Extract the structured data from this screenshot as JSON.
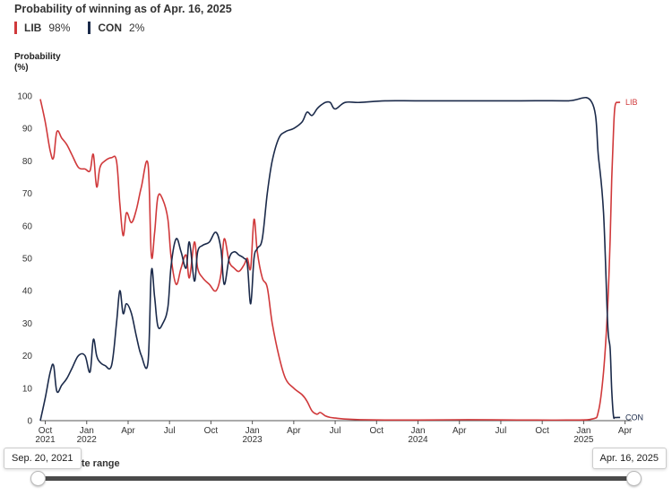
{
  "chart_data": {
    "type": "line",
    "title": "Probability of winning as of Apr. 16, 2025",
    "ylabel_line1": "Probability",
    "ylabel_line2": "(%)",
    "ylim": [
      0,
      100
    ],
    "yticks": [
      0,
      10,
      20,
      30,
      40,
      50,
      60,
      70,
      80,
      90,
      100
    ],
    "xrange": [
      2021.72,
      2025.29
    ],
    "xticks": [
      {
        "x": 2021.75,
        "line1": "Oct",
        "line2": "2021"
      },
      {
        "x": 2022.0,
        "line1": "Jan",
        "line2": "2022"
      },
      {
        "x": 2022.25,
        "line1": "Apr",
        "line2": ""
      },
      {
        "x": 2022.5,
        "line1": "Jul",
        "line2": ""
      },
      {
        "x": 2022.75,
        "line1": "Oct",
        "line2": ""
      },
      {
        "x": 2023.0,
        "line1": "Jan",
        "line2": "2023"
      },
      {
        "x": 2023.25,
        "line1": "Apr",
        "line2": ""
      },
      {
        "x": 2023.5,
        "line1": "Jul",
        "line2": ""
      },
      {
        "x": 2023.75,
        "line1": "Oct",
        "line2": ""
      },
      {
        "x": 2024.0,
        "line1": "Jan",
        "line2": "2024"
      },
      {
        "x": 2024.25,
        "line1": "Apr",
        "line2": ""
      },
      {
        "x": 2024.5,
        "line1": "Jul",
        "line2": ""
      },
      {
        "x": 2024.75,
        "line1": "Oct",
        "line2": ""
      },
      {
        "x": 2025.0,
        "line1": "Jan",
        "line2": "2025"
      },
      {
        "x": 2025.25,
        "line1": "Apr",
        "line2": ""
      }
    ],
    "series": [
      {
        "name": "LIB",
        "current": "98%",
        "end_label": "LIB",
        "color": "#d0393b",
        "points": [
          [
            2021.72,
            99
          ],
          [
            2021.75,
            92
          ],
          [
            2021.78,
            83
          ],
          [
            2021.8,
            81
          ],
          [
            2021.82,
            89
          ],
          [
            2021.85,
            87
          ],
          [
            2021.88,
            85
          ],
          [
            2021.91,
            82
          ],
          [
            2021.95,
            78
          ],
          [
            2021.99,
            77.5
          ],
          [
            2022.02,
            77
          ],
          [
            2022.04,
            82
          ],
          [
            2022.06,
            72
          ],
          [
            2022.08,
            78
          ],
          [
            2022.11,
            80
          ],
          [
            2022.15,
            81
          ],
          [
            2022.18,
            80
          ],
          [
            2022.2,
            67
          ],
          [
            2022.22,
            57
          ],
          [
            2022.24,
            64
          ],
          [
            2022.27,
            61
          ],
          [
            2022.3,
            65
          ],
          [
            2022.33,
            72
          ],
          [
            2022.37,
            79
          ],
          [
            2022.39,
            51
          ],
          [
            2022.41,
            58
          ],
          [
            2022.43,
            69
          ],
          [
            2022.46,
            68
          ],
          [
            2022.49,
            62
          ],
          [
            2022.51,
            50
          ],
          [
            2022.54,
            42
          ],
          [
            2022.57,
            47
          ],
          [
            2022.6,
            51
          ],
          [
            2022.62,
            44
          ],
          [
            2022.65,
            55
          ],
          [
            2022.67,
            47
          ],
          [
            2022.7,
            44
          ],
          [
            2022.74,
            42
          ],
          [
            2022.78,
            40
          ],
          [
            2022.81,
            45
          ],
          [
            2022.83,
            56
          ],
          [
            2022.86,
            49
          ],
          [
            2022.89,
            47
          ],
          [
            2022.92,
            46
          ],
          [
            2022.95,
            48
          ],
          [
            2022.97,
            50
          ],
          [
            2022.99,
            47
          ],
          [
            2023.01,
            62
          ],
          [
            2023.03,
            52
          ],
          [
            2023.06,
            44
          ],
          [
            2023.09,
            41
          ],
          [
            2023.12,
            30
          ],
          [
            2023.16,
            20
          ],
          [
            2023.2,
            13
          ],
          [
            2023.25,
            10
          ],
          [
            2023.3,
            8
          ],
          [
            2023.33,
            6
          ],
          [
            2023.36,
            3
          ],
          [
            2023.39,
            2
          ],
          [
            2023.41,
            2.5
          ],
          [
            2023.44,
            1.5
          ],
          [
            2023.47,
            1
          ],
          [
            2023.5,
            0.8
          ],
          [
            2023.56,
            0.5
          ],
          [
            2023.65,
            0.3
          ],
          [
            2023.8,
            0.2
          ],
          [
            2024.0,
            0.2
          ],
          [
            2024.3,
            0.3
          ],
          [
            2024.6,
            0.2
          ],
          [
            2024.9,
            0.2
          ],
          [
            2025.05,
            0.5
          ],
          [
            2025.09,
            3
          ],
          [
            2025.12,
            15
          ],
          [
            2025.145,
            35
          ],
          [
            2025.16,
            56
          ],
          [
            2025.17,
            75
          ],
          [
            2025.18,
            89
          ],
          [
            2025.19,
            97
          ],
          [
            2025.21,
            98
          ],
          [
            2025.22,
            98
          ]
        ]
      },
      {
        "name": "CON",
        "current": "2%",
        "end_label": "CON",
        "color": "#1b2a4a",
        "points": [
          [
            2021.72,
            0
          ],
          [
            2021.75,
            7
          ],
          [
            2021.78,
            15
          ],
          [
            2021.8,
            17
          ],
          [
            2021.82,
            9
          ],
          [
            2021.85,
            11
          ],
          [
            2021.88,
            13
          ],
          [
            2021.91,
            16
          ],
          [
            2021.95,
            20
          ],
          [
            2021.99,
            20
          ],
          [
            2022.02,
            15
          ],
          [
            2022.04,
            25
          ],
          [
            2022.06,
            20
          ],
          [
            2022.08,
            18
          ],
          [
            2022.11,
            17
          ],
          [
            2022.15,
            17
          ],
          [
            2022.18,
            30
          ],
          [
            2022.2,
            40
          ],
          [
            2022.22,
            33
          ],
          [
            2022.24,
            36
          ],
          [
            2022.27,
            33
          ],
          [
            2022.3,
            26
          ],
          [
            2022.33,
            20
          ],
          [
            2022.37,
            18
          ],
          [
            2022.39,
            46
          ],
          [
            2022.41,
            38
          ],
          [
            2022.43,
            29
          ],
          [
            2022.46,
            30
          ],
          [
            2022.49,
            35
          ],
          [
            2022.51,
            48
          ],
          [
            2022.54,
            56
          ],
          [
            2022.57,
            52
          ],
          [
            2022.6,
            47
          ],
          [
            2022.62,
            55
          ],
          [
            2022.65,
            43
          ],
          [
            2022.67,
            52
          ],
          [
            2022.7,
            54
          ],
          [
            2022.74,
            55
          ],
          [
            2022.78,
            58
          ],
          [
            2022.81,
            53
          ],
          [
            2022.83,
            42
          ],
          [
            2022.86,
            50
          ],
          [
            2022.89,
            52
          ],
          [
            2022.92,
            51
          ],
          [
            2022.95,
            50
          ],
          [
            2022.97,
            48
          ],
          [
            2022.99,
            36
          ],
          [
            2023.01,
            50
          ],
          [
            2023.03,
            53
          ],
          [
            2023.06,
            56
          ],
          [
            2023.09,
            70
          ],
          [
            2023.12,
            80
          ],
          [
            2023.16,
            87
          ],
          [
            2023.2,
            89
          ],
          [
            2023.25,
            90
          ],
          [
            2023.3,
            92
          ],
          [
            2023.33,
            95
          ],
          [
            2023.36,
            94
          ],
          [
            2023.39,
            96
          ],
          [
            2023.41,
            97
          ],
          [
            2023.44,
            98
          ],
          [
            2023.47,
            98
          ],
          [
            2023.5,
            96
          ],
          [
            2023.56,
            98
          ],
          [
            2023.65,
            98
          ],
          [
            2023.8,
            98.5
          ],
          [
            2024.0,
            98.5
          ],
          [
            2024.3,
            98.5
          ],
          [
            2024.6,
            98.5
          ],
          [
            2024.9,
            98.5
          ],
          [
            2025.05,
            98
          ],
          [
            2025.09,
            81
          ],
          [
            2025.12,
            64
          ],
          [
            2025.145,
            30
          ],
          [
            2025.16,
            22
          ],
          [
            2025.17,
            9
          ],
          [
            2025.18,
            1.5
          ],
          [
            2025.19,
            1
          ],
          [
            2025.21,
            1
          ],
          [
            2025.22,
            1
          ]
        ]
      }
    ]
  },
  "legend": [
    {
      "name": "LIB",
      "value": "98%",
      "color": "#d0393b"
    },
    {
      "name": "CON",
      "value": "2%",
      "color": "#1b2a4a"
    }
  ],
  "date_range": {
    "label": "date range",
    "start": "Sep. 20, 2021",
    "end": "Apr. 16, 2025"
  }
}
